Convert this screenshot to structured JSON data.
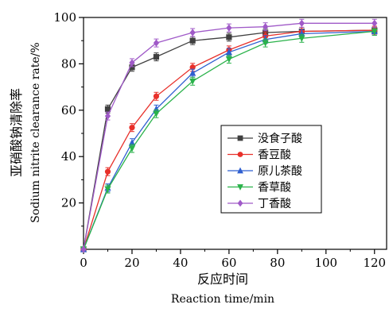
{
  "chart_data": {
    "type": "line",
    "title": "",
    "xlabel_cn": "反应时间",
    "xlabel_en": "Reaction time/min",
    "ylabel_cn": "亚硝酸钠清除率",
    "ylabel_en": "Sodium nitrite clearance rate/%",
    "xlim": [
      0,
      125
    ],
    "ylim": [
      0,
      100
    ],
    "xticks": [
      0,
      20,
      40,
      60,
      80,
      100,
      120
    ],
    "yticks": [
      20,
      40,
      60,
      80,
      100
    ],
    "grid": false,
    "legend_position": "center-right",
    "x": [
      0,
      10,
      20,
      30,
      45,
      60,
      75,
      90,
      120
    ],
    "series": [
      {
        "name": "没食子酸",
        "color": "#404040",
        "marker": "square",
        "values": [
          0,
          60.5,
          78.5,
          83,
          90,
          91.5,
          93.5,
          94,
          94.5
        ]
      },
      {
        "name": "香豆酸",
        "color": "#e8302a",
        "marker": "circle",
        "values": [
          0,
          33.5,
          52.5,
          66,
          78.5,
          86,
          92,
          94,
          94.5
        ]
      },
      {
        "name": "原儿茶酸",
        "color": "#2f5fd0",
        "marker": "triangle-up",
        "values": [
          0,
          26.5,
          46,
          60.5,
          76,
          85,
          90.5,
          93,
          94
        ]
      },
      {
        "name": "香草酸",
        "color": "#2ab24a",
        "marker": "triangle-down",
        "values": [
          0,
          26,
          43.5,
          58.5,
          72.5,
          82,
          89,
          91,
          94
        ]
      },
      {
        "name": "丁香酸",
        "color": "#a05ac8",
        "marker": "diamond",
        "values": [
          0,
          57.5,
          80.5,
          89,
          93.5,
          95.5,
          96,
          97.5,
          97.5
        ]
      }
    ]
  }
}
